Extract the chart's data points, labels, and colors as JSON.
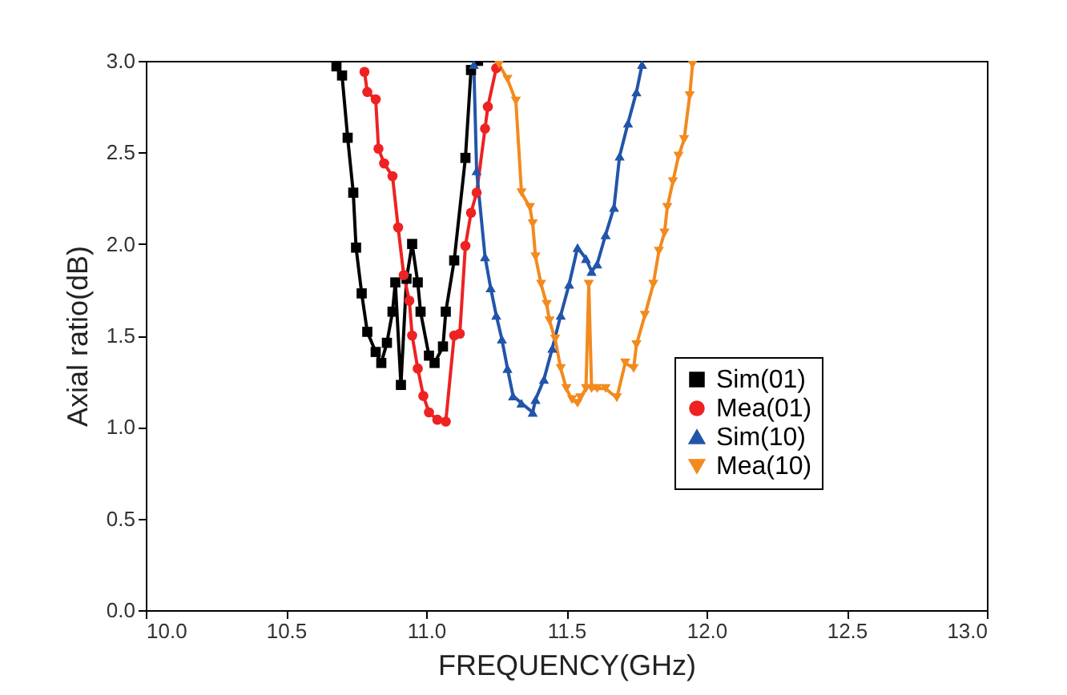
{
  "chart_data": {
    "type": "line",
    "xlabel": "FREQUENCY(GHz)",
    "ylabel": "Axial ratio(dB)",
    "xlim": [
      10.0,
      13.0
    ],
    "ylim": [
      0.0,
      3.0
    ],
    "xticks": [
      {
        "value": 10,
        "label": "10.0"
      },
      {
        "value": 10.5,
        "label": "10.5"
      },
      {
        "value": 11,
        "label": "11.0"
      },
      {
        "value": 11.5,
        "label": "11.5"
      },
      {
        "value": 12,
        "label": "12.0"
      },
      {
        "value": 12.5,
        "label": "12.5"
      },
      {
        "value": 13,
        "label": "13.0"
      }
    ],
    "yticks": [
      {
        "value": 0,
        "label": "0.0"
      },
      0.5,
      {
        "value": 1,
        "label": "1.0"
      },
      1.5,
      {
        "value": 2,
        "label": "2.0"
      },
      2.5,
      {
        "value": 3,
        "label": "3.0"
      }
    ],
    "grid": false,
    "legend": "right",
    "line_style": "solid",
    "series": [
      {
        "name": "Sim(01)",
        "color": "#000000",
        "marker": "square",
        "x": [
          10.68,
          10.7,
          10.72,
          10.74,
          10.75,
          10.77,
          10.79,
          10.82,
          10.84,
          10.86,
          10.88,
          10.89,
          10.91,
          10.93,
          10.95,
          10.97,
          10.98,
          11.01,
          11.03,
          11.06,
          11.07,
          11.1,
          11.14,
          11.16,
          11.185
        ],
        "values": [
          2.97,
          2.92,
          2.58,
          2.28,
          1.98,
          1.73,
          1.52,
          1.41,
          1.35,
          1.46,
          1.63,
          1.79,
          1.23,
          1.81,
          2.0,
          1.79,
          1.63,
          1.39,
          1.35,
          1.44,
          1.63,
          1.91,
          2.47,
          2.95,
          3.0
        ]
      },
      {
        "name": "Mea(01)",
        "color": "#ee2222",
        "marker": "circle",
        "x": [
          10.78,
          10.79,
          10.82,
          10.83,
          10.85,
          10.88,
          10.9,
          10.92,
          10.94,
          10.95,
          10.97,
          10.99,
          11.01,
          11.04,
          11.07,
          11.1,
          11.12,
          11.14,
          11.16,
          11.18,
          11.21,
          11.22,
          11.25
        ],
        "values": [
          2.94,
          2.83,
          2.79,
          2.52,
          2.44,
          2.37,
          2.09,
          1.83,
          1.69,
          1.5,
          1.32,
          1.17,
          1.08,
          1.04,
          1.03,
          1.5,
          1.51,
          1.99,
          2.17,
          2.28,
          2.63,
          2.75,
          2.96
        ]
      },
      {
        "name": "Sim(10)",
        "color": "#2255aa",
        "marker": "triangle",
        "x": [
          11.17,
          11.18,
          11.21,
          11.23,
          11.25,
          11.27,
          11.29,
          11.31,
          11.34,
          11.38,
          11.39,
          11.42,
          11.45,
          11.48,
          11.51,
          11.54,
          11.57,
          11.59,
          11.61,
          11.64,
          11.67,
          11.69,
          11.72,
          11.75,
          11.77
        ],
        "values": [
          2.98,
          2.4,
          1.93,
          1.76,
          1.61,
          1.48,
          1.32,
          1.17,
          1.13,
          1.08,
          1.15,
          1.26,
          1.43,
          1.61,
          1.78,
          1.98,
          1.92,
          1.85,
          1.89,
          2.05,
          2.2,
          2.48,
          2.66,
          2.83,
          2.98
        ]
      },
      {
        "name": "Mea(10)",
        "color": "#f28a1e",
        "marker": "triangle-down",
        "x": [
          11.26,
          11.29,
          11.32,
          11.34,
          11.37,
          11.38,
          11.39,
          11.41,
          11.43,
          11.44,
          11.46,
          11.48,
          11.5,
          11.52,
          11.54,
          11.55,
          11.57,
          11.58,
          11.59,
          11.61,
          11.64,
          11.68,
          11.71,
          11.74,
          11.75,
          11.78,
          11.81,
          11.83,
          11.85,
          11.86,
          11.88,
          11.9,
          11.92,
          11.94,
          11.95
        ],
        "values": [
          2.98,
          2.9,
          2.78,
          2.28,
          2.2,
          2.11,
          1.93,
          1.78,
          1.67,
          1.58,
          1.48,
          1.32,
          1.21,
          1.15,
          1.13,
          1.16,
          1.21,
          1.78,
          1.21,
          1.21,
          1.21,
          1.16,
          1.35,
          1.32,
          1.45,
          1.61,
          1.78,
          1.96,
          2.06,
          2.2,
          2.34,
          2.48,
          2.57,
          2.81,
          2.98
        ]
      }
    ]
  }
}
